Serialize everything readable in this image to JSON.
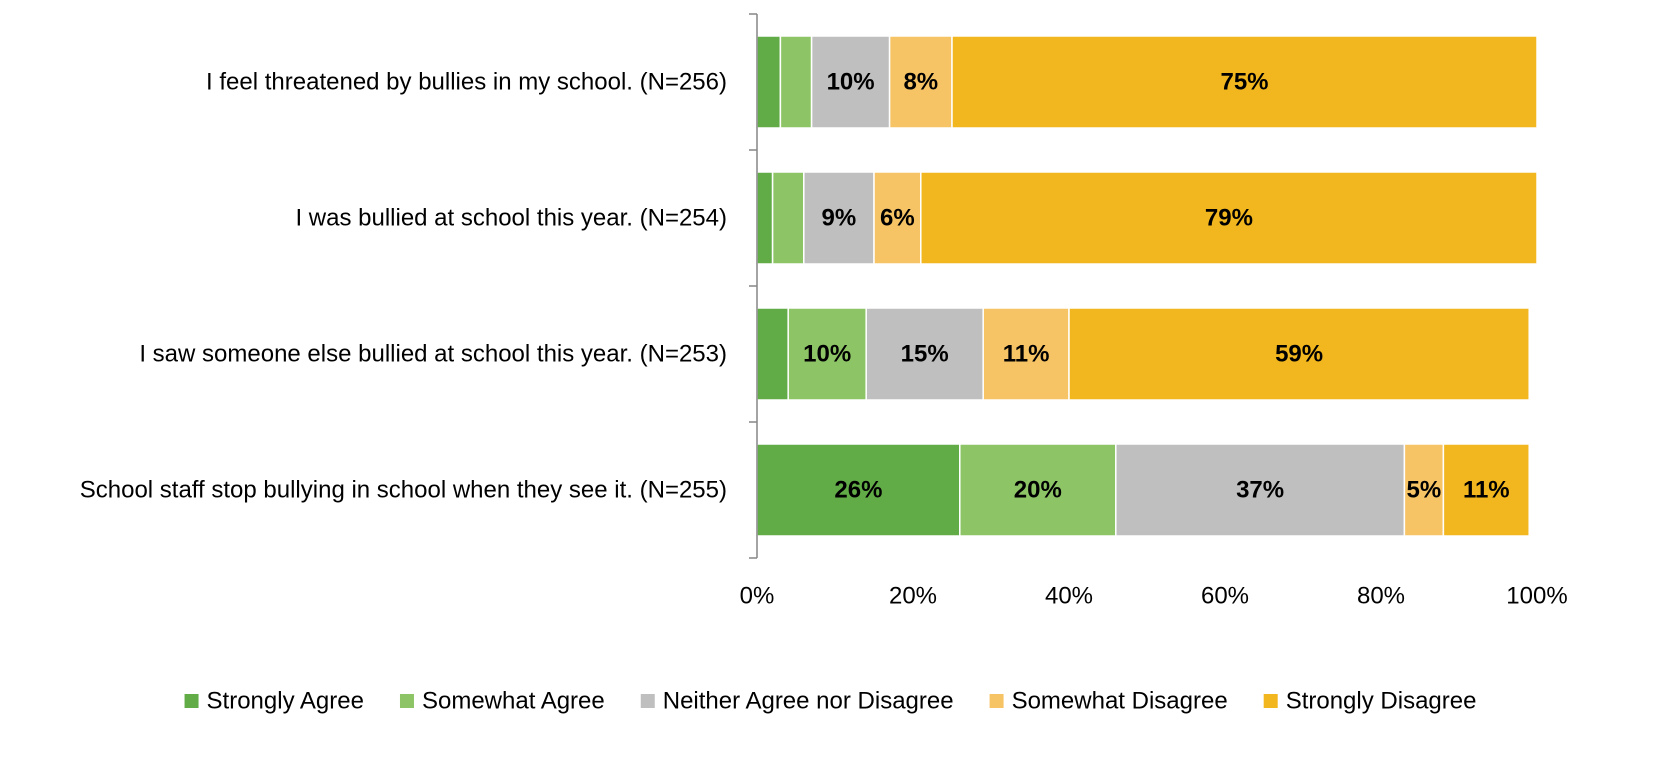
{
  "chart_data": {
    "type": "bar",
    "orientation": "horizontal",
    "stacked": true,
    "title": "",
    "xlabel": "",
    "ylabel": "",
    "xlim": [
      0,
      100
    ],
    "grid": false,
    "legend_position": "bottom",
    "x_ticks": [
      "0%",
      "20%",
      "40%",
      "60%",
      "80%",
      "100%"
    ],
    "categories": [
      "I feel threatened by bullies in my school. (N=256)",
      "I was bullied at school this year. (N=254)",
      "I saw someone else bullied at school this year. (N=253)",
      "School staff stop bullying in school when they see it. (N=255)"
    ],
    "series": [
      {
        "name": "Strongly Agree",
        "color": "#62ac47",
        "values": [
          3,
          2,
          4,
          26
        ],
        "labels": [
          "",
          "",
          "",
          "26%"
        ]
      },
      {
        "name": "Somewhat Agree",
        "color": "#8dc566",
        "values": [
          4,
          4,
          10,
          20
        ],
        "labels": [
          "",
          "",
          "10%",
          "20%"
        ]
      },
      {
        "name": "Neither Agree nor Disagree",
        "color": "#bfbfbf",
        "values": [
          10,
          9,
          15,
          37
        ],
        "labels": [
          "10%",
          "9%",
          "15%",
          "37%"
        ]
      },
      {
        "name": "Somewhat Disagree",
        "color": "#f6c465",
        "values": [
          8,
          6,
          11,
          5
        ],
        "labels": [
          "8%",
          "6%",
          "11%",
          "5%"
        ]
      },
      {
        "name": "Strongly Disagree",
        "color": "#f2b61e",
        "values": [
          75,
          79,
          59,
          11
        ],
        "labels": [
          "75%",
          "79%",
          "59%",
          "11%"
        ]
      }
    ]
  }
}
